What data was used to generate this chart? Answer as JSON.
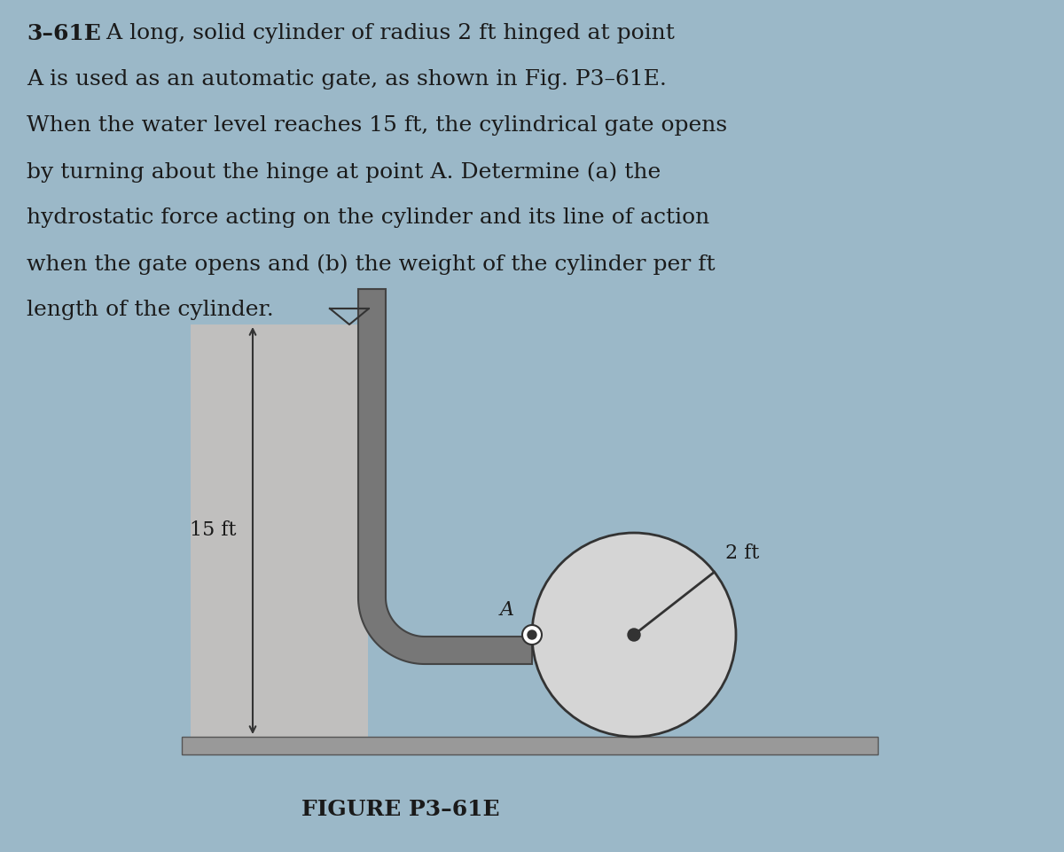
{
  "bg_color": "#9bb8c8",
  "text_color": "#1a1a1a",
  "figure_label": "FIGURE P3–61E",
  "label_15ft": "15 ft",
  "label_2ft": "2 ft",
  "label_A": "A",
  "wall_fill": "#c0bfbe",
  "wall_edge": "#555555",
  "floor_fill": "#999999",
  "cylinder_fill": "#d5d5d5",
  "cylinder_edge": "#333333",
  "pipe_fill": "#777777",
  "pipe_edge": "#444444",
  "dim_color": "#333333"
}
